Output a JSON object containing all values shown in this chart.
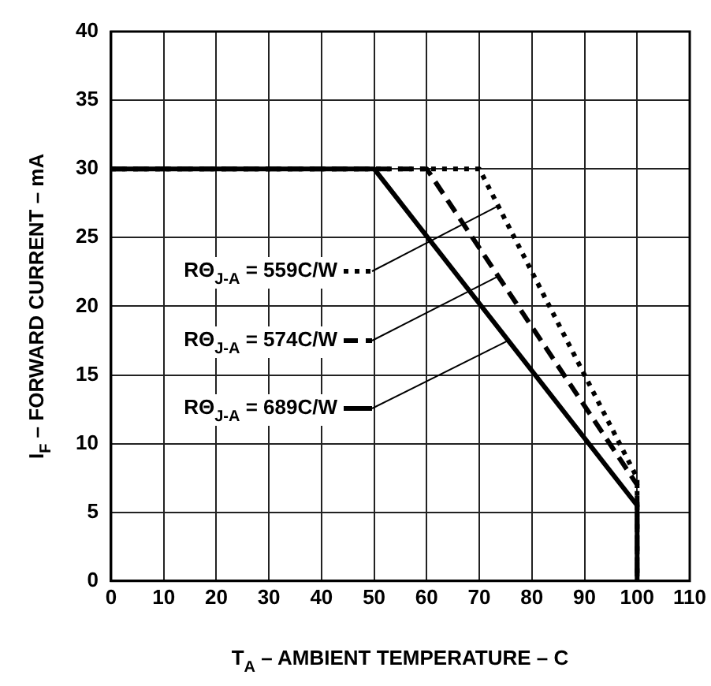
{
  "chart_data": {
    "type": "line",
    "xlabel": "T$_{A}$ – AMBIENT TEMPERATURE – C",
    "ylabel": "I$_{F}$ – FORWARD CURRENT – mA",
    "xlim": [
      0,
      110
    ],
    "xticks": [
      0,
      10,
      20,
      30,
      40,
      50,
      60,
      70,
      80,
      90,
      100,
      110
    ],
    "ylim": [
      0,
      40
    ],
    "yticks": [
      0,
      5,
      10,
      15,
      20,
      25,
      30,
      35,
      40
    ],
    "grid": true,
    "marker": "none",
    "legend": "left",
    "series": [
      {
        "name": "RΘ$_{J-A}$ = 559C/W",
        "color": "#000000",
        "line_style": "dotted",
        "x": [
          0,
          70,
          100,
          100
        ],
        "values": [
          30,
          30,
          7.5,
          0
        ]
      },
      {
        "name": "RΘ$_{J-A}$ = 574C/W",
        "color": "#000000",
        "line_style": "dashed",
        "x": [
          0,
          60,
          100,
          100
        ],
        "values": [
          30,
          30,
          7,
          0
        ]
      },
      {
        "name": "RΘ$_{J-A}$ = 689C/W",
        "color": "#000000",
        "line_style": "solid",
        "x": [
          0,
          50,
          100,
          100
        ],
        "values": [
          30,
          30,
          5.5,
          0
        ]
      }
    ]
  }
}
